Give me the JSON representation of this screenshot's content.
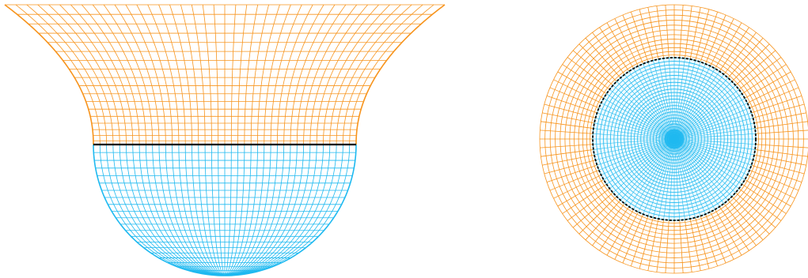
{
  "colors": {
    "upper_mesh": "#F7941D",
    "lower_mesh": "#1EB9F0",
    "interface": "#000000",
    "background": "#FFFFFF"
  },
  "side_view": {
    "upper_region": {
      "radial_lines": 40,
      "levels": 18
    },
    "lower_region": {
      "radial_lines": 40,
      "levels": 22
    }
  },
  "top_view": {
    "outer_ring": {
      "rings": 12,
      "spokes": 96
    },
    "inner_disk": {
      "rings": 26,
      "spokes": 96
    }
  }
}
